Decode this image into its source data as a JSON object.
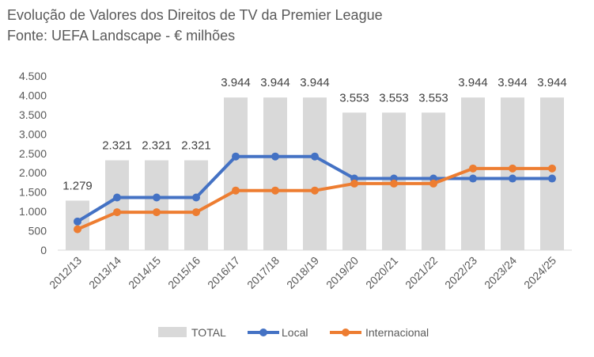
{
  "chart_data": {
    "type": "bar",
    "title": "Evolução de Valores dos Direitos de TV da Premier League",
    "subtitle": "Fonte: UEFA Landscape - € milhões",
    "xlabel": "",
    "ylabel": "",
    "categories": [
      "2012/13",
      "2013/14",
      "2014/15",
      "2015/16",
      "2016/17",
      "2017/18",
      "2018/19",
      "2019/20",
      "2020/21",
      "2021/22",
      "2022/23",
      "2023/24",
      "2024/25"
    ],
    "ylim": [
      0,
      4500
    ],
    "yticks": [
      0,
      500,
      1000,
      1500,
      2000,
      2500,
      3000,
      3500,
      4000,
      4500
    ],
    "ytick_labels": [
      "0",
      "500",
      "1.000",
      "1.500",
      "2.000",
      "2.500",
      "3.000",
      "3.500",
      "4.000",
      "4.500"
    ],
    "grid": false,
    "legend_position": "bottom",
    "series": [
      {
        "name": "TOTAL",
        "kind": "bar",
        "color": "#d9d9d9",
        "values": [
          1279,
          2321,
          2321,
          2321,
          3944,
          3944,
          3944,
          3553,
          3553,
          3553,
          3944,
          3944,
          3944
        ],
        "data_labels": [
          "1.279",
          "2.321",
          "2.321",
          "2.321",
          "3.944",
          "3.944",
          "3.944",
          "3.553",
          "3.553",
          "3.553",
          "3.944",
          "3.944",
          "3.944"
        ]
      },
      {
        "name": "Local",
        "kind": "line",
        "color": "#4472c4",
        "values": [
          740,
          1360,
          1360,
          1360,
          2420,
          2420,
          2420,
          1850,
          1850,
          1850,
          1850,
          1850,
          1850
        ]
      },
      {
        "name": "Internacional",
        "kind": "line",
        "color": "#ed7d31",
        "values": [
          540,
          980,
          980,
          980,
          1540,
          1540,
          1540,
          1720,
          1720,
          1720,
          2110,
          2110,
          2110
        ]
      }
    ]
  }
}
